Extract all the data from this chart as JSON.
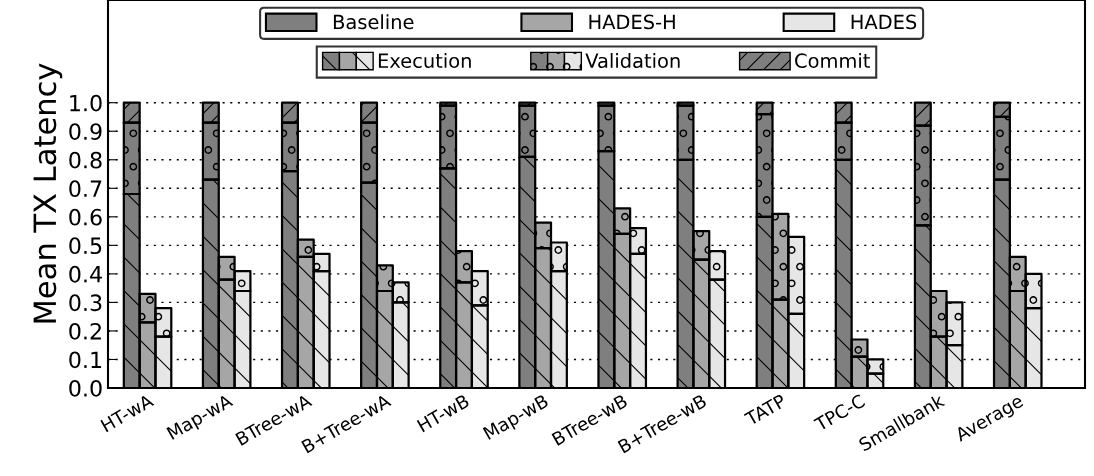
{
  "chart_data": {
    "type": "bar",
    "stacked": true,
    "ylabel": "Mean TX Latency",
    "categories": [
      null,
      "HT-wA",
      null,
      null,
      null,
      null,
      "Map-wA",
      null,
      null,
      null,
      null,
      "BTree-wA",
      null,
      null,
      null,
      null,
      "B+Tree-wA",
      null,
      null,
      null,
      null,
      "HT-wB",
      null,
      null,
      null,
      null,
      "Map-wB",
      null,
      null,
      null,
      null,
      "BTree-wB",
      null,
      null,
      null,
      null,
      "B+Tree-wB",
      null,
      null,
      null,
      null,
      "TATP",
      null,
      null,
      null,
      null,
      "TPC-C",
      null,
      null,
      null,
      null,
      "Smallbank",
      null,
      null,
      null,
      null,
      "Average",
      null,
      null,
      null
    ],
    "ylim": [
      0,
      1.36
    ],
    "yticks": [
      {
        "value": 0,
        "label": "0.0"
      },
      0.1,
      0.2,
      0.3,
      0.4,
      0.5,
      0.6,
      0.7,
      0.8,
      0.9,
      {
        "value": 1,
        "label": "1.0"
      }
    ],
    "grid": "y",
    "legend": "top",
    "annotations": [
      "Baseline",
      "HADES-H",
      "HADES"
    ],
    "series": [
      {
        "name": "Execution",
        "values": [
          0.68,
          0.23,
          0.18,
          null,
          null,
          0.73,
          0.38,
          0.34,
          null,
          null,
          0.76,
          0.46,
          0.41,
          null,
          null,
          0.72,
          0.34,
          0.3,
          null,
          null,
          0.77,
          0.37,
          0.29,
          null,
          null,
          0.81,
          0.49,
          0.41,
          null,
          null,
          0.83,
          0.54,
          0.47,
          null,
          null,
          0.8,
          0.45,
          0.38,
          null,
          null,
          0.6,
          0.31,
          0.26,
          null,
          null,
          0.8,
          0.11,
          0.05,
          null,
          null,
          0.57,
          0.18,
          0.15,
          null,
          null,
          0.73,
          0.34,
          0.28,
          null,
          null
        ],
        "colors": [
          "#7f7f7f",
          "#a6a6a6",
          "#e6e6e6",
          null,
          null,
          "#7f7f7f",
          "#a6a6a6",
          "#e6e6e6",
          null,
          null,
          "#7f7f7f",
          "#a6a6a6",
          "#e6e6e6",
          null,
          null,
          "#7f7f7f",
          "#a6a6a6",
          "#e6e6e6",
          null,
          null,
          "#7f7f7f",
          "#a6a6a6",
          "#e6e6e6",
          null,
          null,
          "#7f7f7f",
          "#a6a6a6",
          "#e6e6e6",
          null,
          null,
          "#7f7f7f",
          "#a6a6a6",
          "#e6e6e6",
          null,
          null,
          "#7f7f7f",
          "#a6a6a6",
          "#e6e6e6",
          null,
          null,
          "#7f7f7f",
          "#a6a6a6",
          "#e6e6e6",
          null,
          null,
          "#7f7f7f",
          "#a6a6a6",
          "#e6e6e6",
          null,
          null,
          "#7f7f7f",
          "#a6a6a6",
          "#e6e6e6",
          null,
          null,
          "#7f7f7f",
          "#a6a6a6",
          "#e6e6e6",
          null,
          null
        ]
      },
      {
        "name": "Validation",
        "values": [
          0.25,
          0.1,
          0.1,
          null,
          null,
          0.2,
          0.08,
          0.07,
          null,
          null,
          0.17,
          0.06,
          0.06,
          null,
          null,
          0.21,
          0.09,
          0.07,
          null,
          null,
          0.22,
          0.11,
          0.12,
          null,
          null,
          0.18,
          0.09,
          0.1,
          null,
          null,
          0.16,
          0.09,
          0.09,
          null,
          null,
          0.19,
          0.1,
          0.1,
          null,
          null,
          0.36,
          0.3,
          0.27,
          null,
          null,
          0.13,
          0.06,
          0.05,
          null,
          null,
          0.35,
          0.16,
          0.15,
          null,
          null,
          0.22,
          0.12,
          0.12,
          null,
          null
        ],
        "colors": [
          "#7f7f7f",
          "#a6a6a6",
          "#e6e6e6",
          null,
          null,
          "#7f7f7f",
          "#a6a6a6",
          "#e6e6e6",
          null,
          null,
          "#7f7f7f",
          "#a6a6a6",
          "#e6e6e6",
          null,
          null,
          "#7f7f7f",
          "#a6a6a6",
          "#e6e6e6",
          null,
          null,
          "#7f7f7f",
          "#a6a6a6",
          "#e6e6e6",
          null,
          null,
          "#7f7f7f",
          "#a6a6a6",
          "#e6e6e6",
          null,
          null,
          "#7f7f7f",
          "#a6a6a6",
          "#e6e6e6",
          null,
          null,
          "#7f7f7f",
          "#a6a6a6",
          "#e6e6e6",
          null,
          null,
          "#7f7f7f",
          "#a6a6a6",
          "#e6e6e6",
          null,
          null,
          "#7f7f7f",
          "#a6a6a6",
          "#e6e6e6",
          null,
          null,
          "#7f7f7f",
          "#a6a6a6",
          "#e6e6e6",
          null,
          null,
          "#7f7f7f",
          "#a6a6a6",
          "#e6e6e6",
          null,
          null
        ]
      },
      {
        "name": "Commit",
        "values": [
          0.07,
          null,
          null,
          null,
          null,
          0.07,
          null,
          null,
          null,
          null,
          0.07,
          null,
          null,
          null,
          null,
          0.07,
          null,
          null,
          null,
          null,
          0.01,
          null,
          null,
          null,
          null,
          0.01,
          null,
          null,
          null,
          null,
          0.01,
          null,
          null,
          null,
          null,
          0.01,
          null,
          null,
          null,
          null,
          0.04,
          null,
          null,
          null,
          null,
          0.07,
          null,
          null,
          null,
          null,
          0.08,
          null,
          null,
          null,
          null,
          0.05,
          null,
          null,
          null,
          null
        ],
        "colors": [
          "#7f7f7f",
          null,
          null,
          null,
          null,
          "#7f7f7f",
          null,
          null,
          null,
          null,
          "#7f7f7f",
          null,
          null,
          null,
          null,
          "#7f7f7f",
          null,
          null,
          null,
          null,
          "#7f7f7f",
          null,
          null,
          null,
          null,
          "#7f7f7f",
          null,
          null,
          null,
          null,
          "#7f7f7f",
          null,
          null,
          null,
          null,
          "#7f7f7f",
          null,
          null,
          null,
          null,
          "#7f7f7f",
          null,
          null,
          null,
          null,
          "#7f7f7f",
          null,
          null,
          null,
          null,
          "#7f7f7f",
          null,
          null,
          null,
          null,
          "#7f7f7f",
          null,
          null,
          null,
          null
        ]
      }
    ]
  }
}
